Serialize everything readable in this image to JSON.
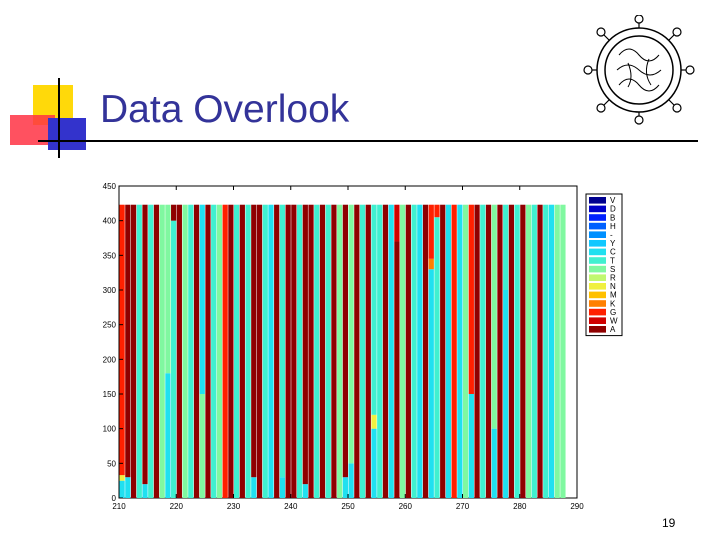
{
  "slide": {
    "title": "Data Overlook",
    "page_number": "19"
  },
  "logo": {
    "icon": "virus-emblem-icon"
  },
  "colors": {
    "title": "#333399",
    "deco_yellow": "#ffd90a",
    "deco_red": "#ff3344",
    "deco_blue": "#3333cc"
  },
  "chart_data": {
    "type": "bar",
    "stacked": true,
    "title": "",
    "xlabel": "",
    "ylabel": "",
    "xlim": [
      210,
      290
    ],
    "ylim": [
      0,
      450
    ],
    "x_ticks": [
      210,
      220,
      230,
      240,
      250,
      260,
      270,
      280,
      290
    ],
    "y_ticks": [
      0,
      50,
      100,
      150,
      200,
      250,
      300,
      350,
      400,
      450
    ],
    "grid": false,
    "legend_position": "right",
    "positions": {
      "start": 210,
      "end": 287,
      "total_height": 423
    },
    "legend": [
      "V",
      "D",
      "B",
      "H",
      "-",
      "Y",
      "C",
      "T",
      "S",
      "R",
      "N",
      "M",
      "K",
      "G",
      "W",
      "A"
    ],
    "colors": {
      "V": "#00008f",
      "D": "#0000c8",
      "B": "#0020ff",
      "H": "#0060ff",
      "-": "#0090ff",
      "Y": "#10c8ff",
      "C": "#20e0f0",
      "T": "#40f0d0",
      "S": "#80f8a0",
      "R": "#c0f870",
      "N": "#f0f040",
      "M": "#ffc000",
      "K": "#ff8000",
      "G": "#ff2000",
      "W": "#d00000",
      "A": "#8f0000"
    },
    "columns": [
      {
        "x": 210,
        "stack": [
          [
            "C",
            25
          ],
          [
            "N",
            8
          ],
          [
            "G",
            390
          ]
        ]
      },
      {
        "x": 211,
        "stack": [
          [
            "C",
            30
          ],
          [
            "A",
            393
          ]
        ]
      },
      {
        "x": 212,
        "stack": [
          [
            "A",
            423
          ]
        ]
      },
      {
        "x": 213,
        "stack": [
          [
            "T",
            423
          ]
        ]
      },
      {
        "x": 214,
        "stack": [
          [
            "C",
            20
          ],
          [
            "A",
            403
          ]
        ]
      },
      {
        "x": 215,
        "stack": [
          [
            "T",
            423
          ]
        ]
      },
      {
        "x": 216,
        "stack": [
          [
            "A",
            423
          ]
        ]
      },
      {
        "x": 217,
        "stack": [
          [
            "S",
            423
          ]
        ]
      },
      {
        "x": 218,
        "stack": [
          [
            "C",
            180
          ],
          [
            "S",
            243
          ]
        ]
      },
      {
        "x": 219,
        "stack": [
          [
            "T",
            400
          ],
          [
            "A",
            23
          ]
        ]
      },
      {
        "x": 220,
        "stack": [
          [
            "A",
            423
          ]
        ]
      },
      {
        "x": 221,
        "stack": [
          [
            "S",
            423
          ]
        ]
      },
      {
        "x": 222,
        "stack": [
          [
            "T",
            423
          ]
        ]
      },
      {
        "x": 223,
        "stack": [
          [
            "A",
            423
          ]
        ]
      },
      {
        "x": 224,
        "stack": [
          [
            "S",
            150
          ],
          [
            "C",
            273
          ]
        ]
      },
      {
        "x": 225,
        "stack": [
          [
            "A",
            423
          ]
        ]
      },
      {
        "x": 226,
        "stack": [
          [
            "T",
            423
          ]
        ]
      },
      {
        "x": 227,
        "stack": [
          [
            "S",
            423
          ]
        ]
      },
      {
        "x": 228,
        "stack": [
          [
            "G",
            423
          ]
        ]
      },
      {
        "x": 229,
        "stack": [
          [
            "A",
            423
          ]
        ]
      },
      {
        "x": 230,
        "stack": [
          [
            "T",
            423
          ]
        ]
      },
      {
        "x": 231,
        "stack": [
          [
            "A",
            423
          ]
        ]
      },
      {
        "x": 232,
        "stack": [
          [
            "T",
            423
          ]
        ]
      },
      {
        "x": 233,
        "stack": [
          [
            "C",
            30
          ],
          [
            "A",
            393
          ]
        ]
      },
      {
        "x": 234,
        "stack": [
          [
            "A",
            423
          ]
        ]
      },
      {
        "x": 235,
        "stack": [
          [
            "T",
            423
          ]
        ]
      },
      {
        "x": 236,
        "stack": [
          [
            "C",
            423
          ]
        ]
      },
      {
        "x": 237,
        "stack": [
          [
            "A",
            423
          ]
        ]
      },
      {
        "x": 238,
        "stack": [
          [
            "C",
            30
          ],
          [
            "T",
            393
          ]
        ]
      },
      {
        "x": 239,
        "stack": [
          [
            "A",
            423
          ]
        ]
      },
      {
        "x": 240,
        "stack": [
          [
            "A",
            423
          ]
        ]
      },
      {
        "x": 241,
        "stack": [
          [
            "T",
            423
          ]
        ]
      },
      {
        "x": 242,
        "stack": [
          [
            "C",
            20
          ],
          [
            "A",
            403
          ]
        ]
      },
      {
        "x": 243,
        "stack": [
          [
            "A",
            423
          ]
        ]
      },
      {
        "x": 244,
        "stack": [
          [
            "T",
            423
          ]
        ]
      },
      {
        "x": 245,
        "stack": [
          [
            "A",
            423
          ]
        ]
      },
      {
        "x": 246,
        "stack": [
          [
            "T",
            423
          ]
        ]
      },
      {
        "x": 247,
        "stack": [
          [
            "A",
            423
          ]
        ]
      },
      {
        "x": 248,
        "stack": [
          [
            "S",
            423
          ]
        ]
      },
      {
        "x": 249,
        "stack": [
          [
            "C",
            30
          ],
          [
            "A",
            393
          ]
        ]
      },
      {
        "x": 250,
        "stack": [
          [
            "C",
            50
          ],
          [
            "S",
            373
          ]
        ]
      },
      {
        "x": 251,
        "stack": [
          [
            "A",
            423
          ]
        ]
      },
      {
        "x": 252,
        "stack": [
          [
            "T",
            423
          ]
        ]
      },
      {
        "x": 253,
        "stack": [
          [
            "A",
            423
          ]
        ]
      },
      {
        "x": 254,
        "stack": [
          [
            "C",
            100
          ],
          [
            "N",
            20
          ],
          [
            "T",
            303
          ]
        ]
      },
      {
        "x": 255,
        "stack": [
          [
            "T",
            423
          ]
        ]
      },
      {
        "x": 256,
        "stack": [
          [
            "A",
            423
          ]
        ]
      },
      {
        "x": 257,
        "stack": [
          [
            "C",
            423
          ]
        ]
      },
      {
        "x": 258,
        "stack": [
          [
            "A",
            370
          ],
          [
            "W",
            53
          ]
        ]
      },
      {
        "x": 259,
        "stack": [
          [
            "S",
            423
          ]
        ]
      },
      {
        "x": 260,
        "stack": [
          [
            "A",
            423
          ]
        ]
      },
      {
        "x": 261,
        "stack": [
          [
            "T",
            423
          ]
        ]
      },
      {
        "x": 262,
        "stack": [
          [
            "C",
            423
          ]
        ]
      },
      {
        "x": 263,
        "stack": [
          [
            "A",
            423
          ]
        ]
      },
      {
        "x": 264,
        "stack": [
          [
            "C",
            330
          ],
          [
            "K",
            15
          ],
          [
            "G",
            78
          ]
        ]
      },
      {
        "x": 265,
        "stack": [
          [
            "T",
            405
          ],
          [
            "G",
            18
          ]
        ]
      },
      {
        "x": 266,
        "stack": [
          [
            "A",
            423
          ]
        ]
      },
      {
        "x": 267,
        "stack": [
          [
            "C",
            423
          ]
        ]
      },
      {
        "x": 268,
        "stack": [
          [
            "G",
            423
          ]
        ]
      },
      {
        "x": 269,
        "stack": [
          [
            "C",
            423
          ]
        ]
      },
      {
        "x": 270,
        "stack": [
          [
            "S",
            423
          ]
        ]
      },
      {
        "x": 271,
        "stack": [
          [
            "C",
            150
          ],
          [
            "G",
            273
          ]
        ]
      },
      {
        "x": 272,
        "stack": [
          [
            "A",
            423
          ]
        ]
      },
      {
        "x": 273,
        "stack": [
          [
            "T",
            423
          ]
        ]
      },
      {
        "x": 274,
        "stack": [
          [
            "A",
            423
          ]
        ]
      },
      {
        "x": 275,
        "stack": [
          [
            "C",
            100
          ],
          [
            "S",
            323
          ]
        ]
      },
      {
        "x": 276,
        "stack": [
          [
            "A",
            423
          ]
        ]
      },
      {
        "x": 277,
        "stack": [
          [
            "C",
            300
          ],
          [
            "T",
            123
          ]
        ]
      },
      {
        "x": 278,
        "stack": [
          [
            "A",
            423
          ]
        ]
      },
      {
        "x": 279,
        "stack": [
          [
            "T",
            423
          ]
        ]
      },
      {
        "x": 280,
        "stack": [
          [
            "A",
            423
          ]
        ]
      },
      {
        "x": 281,
        "stack": [
          [
            "S",
            423
          ]
        ]
      },
      {
        "x": 282,
        "stack": [
          [
            "T",
            423
          ]
        ]
      },
      {
        "x": 283,
        "stack": [
          [
            "A",
            423
          ]
        ]
      },
      {
        "x": 284,
        "stack": [
          [
            "T",
            423
          ]
        ]
      },
      {
        "x": 285,
        "stack": [
          [
            "C",
            423
          ]
        ]
      },
      {
        "x": 286,
        "stack": [
          [
            "S",
            423
          ]
        ]
      },
      {
        "x": 287,
        "stack": [
          [
            "S",
            423
          ]
        ]
      }
    ]
  }
}
